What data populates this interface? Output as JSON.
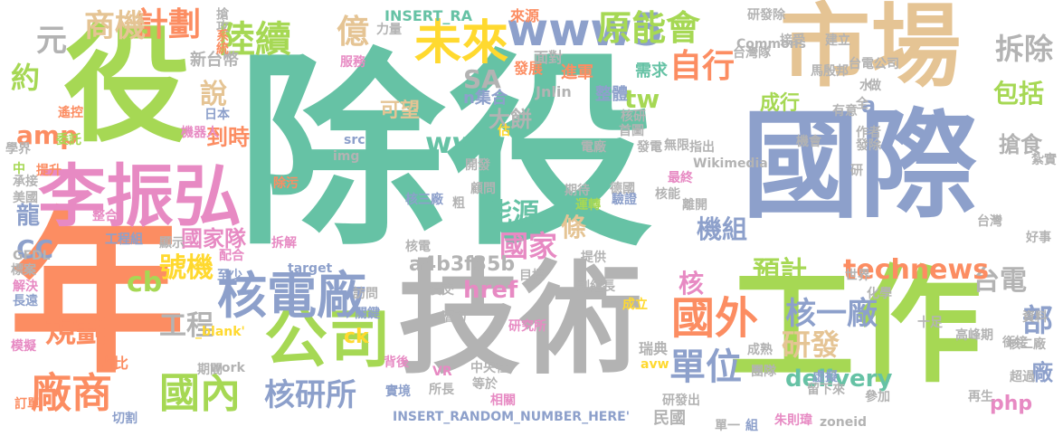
{
  "palette": {
    "green": "#66c2a5",
    "orange": "#fc8d62",
    "blue": "#8da0cb",
    "pink": "#e78ac3",
    "lime": "#a6d854",
    "yellow": "#ffd92f",
    "tan": "#e5c494",
    "gray": "#b3b3b3"
  },
  "words": [
    {
      "t": "除役",
      "c": "#66c2a5"
    },
    {
      "t": "年",
      "c": "#fc8d62"
    },
    {
      "t": "工作",
      "c": "#a6d854"
    },
    {
      "t": "技術",
      "c": "#b3b3b3"
    },
    {
      "t": "國際",
      "c": "#8da0cb"
    },
    {
      "t": "市場",
      "c": "#e5c494"
    },
    {
      "t": "役",
      "c": "#a6d854"
    },
    {
      "t": "李振弘",
      "c": "#e78ac3"
    },
    {
      "t": "公司",
      "c": "#a6d854"
    },
    {
      "t": "核電廠",
      "c": "#8da0cb"
    },
    {
      "t": "未來",
      "c": "#ffd92f"
    },
    {
      "t": "www5",
      "c": "#8da0cb"
    },
    {
      "t": "國外",
      "c": "#fc8d62"
    },
    {
      "t": "廠商",
      "c": "#fc8d62"
    },
    {
      "t": "國內",
      "c": "#a6d854"
    },
    {
      "t": "陸續",
      "c": "#a6d854"
    },
    {
      "t": "原能會",
      "c": "#a6d854"
    },
    {
      "t": "計劃",
      "c": "#fc8d62"
    },
    {
      "t": "億",
      "c": "#e5c494"
    },
    {
      "t": "商機",
      "c": "#e5c494"
    },
    {
      "t": "元",
      "c": "#b3b3b3"
    },
    {
      "t": "約",
      "c": "#a6d854"
    },
    {
      "t": "說",
      "c": "#e5c494"
    },
    {
      "t": "到時",
      "c": "#fc8d62"
    },
    {
      "t": "新台幣",
      "c": "#b3b3b3"
    },
    {
      "t": "日本",
      "c": "#8da0cb"
    },
    {
      "t": "SA",
      "c": "#b3b3b3"
    },
    {
      "t": "www",
      "c": "#66c2a5"
    },
    {
      "t": "tw",
      "c": "#a6d854"
    },
    {
      "t": "自行",
      "c": "#fc8d62"
    },
    {
      "t": "拆除",
      "c": "#b3b3b3"
    },
    {
      "t": "包括",
      "c": "#a6d854"
    },
    {
      "t": "台電",
      "c": "#b3b3b3"
    },
    {
      "t": "預計",
      "c": "#a6d854"
    },
    {
      "t": "technews",
      "c": "#fc8d62"
    },
    {
      "t": "研發",
      "c": "#e5c494"
    },
    {
      "t": "核一廠",
      "c": "#8da0cb"
    },
    {
      "t": "單位",
      "c": "#8da0cb"
    },
    {
      "t": "核研所",
      "c": "#8da0cb"
    },
    {
      "t": "delivery",
      "c": "#66c2a5"
    },
    {
      "t": "部",
      "c": "#8da0cb"
    },
    {
      "t": "廠",
      "c": "#8da0cb"
    },
    {
      "t": "php",
      "c": "#e78ac3"
    },
    {
      "t": "機組",
      "c": "#8da0cb"
    },
    {
      "t": "國家",
      "c": "#e78ac3"
    },
    {
      "t": "能源",
      "c": "#66c2a5"
    },
    {
      "t": "a4b3f35b",
      "c": "#b3b3b3"
    },
    {
      "t": "條",
      "c": "#e5c494"
    },
    {
      "t": "核",
      "c": "#e78ac3"
    },
    {
      "t": "href",
      "c": "#e78ac3"
    },
    {
      "t": "號機",
      "c": "#ffd92f"
    },
    {
      "t": "工程",
      "c": "#b3b3b3"
    },
    {
      "t": "規劃",
      "c": "#fc8d62"
    },
    {
      "t": "cb",
      "c": "#a6d854"
    },
    {
      "t": "CC",
      "c": "#8da0cb"
    },
    {
      "t": "龍",
      "c": "#8da0cb"
    },
    {
      "t": "amp",
      "c": "#fc8d62"
    },
    {
      "t": "國家隊",
      "c": "#e78ac3"
    },
    {
      "t": "ck",
      "c": "#ffd92f"
    },
    {
      "t": "大餅",
      "c": "#b3b3b3"
    },
    {
      "t": "可望",
      "c": "#e5c494"
    },
    {
      "t": "成行",
      "c": "#a6d854"
    },
    {
      "t": "搶食",
      "c": "#b3b3b3"
    },
    {
      "t": "a",
      "c": "#8da0cb"
    },
    {
      "t": "n集合",
      "c": "#8da0cb"
    },
    {
      "t": "Jnlin",
      "c": "#b3b3b3"
    },
    {
      "t": "整體",
      "c": "#8da0cb"
    },
    {
      "t": "需求",
      "c": "#66c2a5"
    },
    {
      "t": "進軍",
      "c": "#fc8d62"
    },
    {
      "t": "發展",
      "c": "#fc8d62"
    },
    {
      "t": "面對",
      "c": "#b3b3b3"
    },
    {
      "t": "INSERT_RA",
      "c": "#66c2a5"
    },
    {
      "t": "來源",
      "c": "#fc8d62"
    },
    {
      "t": "力量",
      "c": "#b3b3b3"
    },
    {
      "t": "搶攻",
      "c": "#b3b3b3"
    },
    {
      "t": "系統",
      "c": "#fc8d62"
    },
    {
      "t": "服務",
      "c": "#e78ac3"
    },
    {
      "t": "遙控",
      "c": "#fc8d62"
    },
    {
      "t": "委託",
      "c": "#a6d854"
    },
    {
      "t": "學界",
      "c": "#b3b3b3"
    },
    {
      "t": "機器人",
      "c": "#e78ac3"
    },
    {
      "t": "中",
      "c": "#a6d854"
    },
    {
      "t": "承接",
      "c": "#b3b3b3"
    },
    {
      "t": "提升",
      "c": "#fc8d62"
    },
    {
      "t": "美國",
      "c": "#b3b3b3"
    },
    {
      "t": "整合",
      "c": "#e78ac3"
    },
    {
      "t": "GFDL",
      "c": "#b3b3b3"
    },
    {
      "t": "工程組",
      "c": "#8da0cb"
    },
    {
      "t": "顯示",
      "c": "#b3b3b3"
    },
    {
      "t": "配合",
      "c": "#e78ac3"
    },
    {
      "t": "標案",
      "c": "#b3b3b3"
    },
    {
      "t": "至少",
      "c": "#8da0cb"
    },
    {
      "t": "解決",
      "c": "#e78ac3"
    },
    {
      "t": "長遠",
      "c": "#8da0cb"
    },
    {
      "t": "占比",
      "c": "#fc8d62"
    },
    {
      "t": "訂單",
      "c": "#fc8d62"
    },
    {
      "t": "期間",
      "c": "#b3b3b3"
    },
    {
      "t": "_blank'",
      "c": "#ffd92f"
    },
    {
      "t": "work",
      "c": "#b3b3b3"
    },
    {
      "t": "模擬",
      "c": "#e78ac3"
    },
    {
      "t": "切割",
      "c": "#8da0cb"
    },
    {
      "t": "target",
      "c": "#8da0cb"
    },
    {
      "t": "拆解",
      "c": "#e78ac3"
    },
    {
      "t": "除污",
      "c": "#fc8d62"
    },
    {
      "t": "img",
      "c": "#b3b3b3"
    },
    {
      "t": "src",
      "c": "#8da0cb"
    },
    {
      "t": "估",
      "c": "#ffd92f"
    },
    {
      "t": "開發",
      "c": "#b3b3b3"
    },
    {
      "t": "顧問",
      "c": "#b3b3b3"
    },
    {
      "t": "核三廠",
      "c": "#8da0cb"
    },
    {
      "t": "粗",
      "c": "#b3b3b3"
    },
    {
      "t": "核電",
      "c": "#b3b3b3"
    },
    {
      "t": "訪問",
      "c": "#b3b3b3"
    },
    {
      "t": "關鍵",
      "c": "#8da0cb"
    },
    {
      "t": "役交",
      "c": "#b3b3b3"
    },
    {
      "t": "潛力",
      "c": "#b3b3b3"
    },
    {
      "t": "背後",
      "c": "#e78ac3"
    },
    {
      "t": "研究所",
      "c": "#e78ac3"
    },
    {
      "t": "實境",
      "c": "#8da0cb"
    },
    {
      "t": "VR",
      "c": "#e78ac3"
    },
    {
      "t": "所長",
      "c": "#b3b3b3"
    },
    {
      "t": "中央社",
      "c": "#b3b3b3"
    },
    {
      "t": "等於",
      "c": "#b3b3b3"
    },
    {
      "t": "相關",
      "c": "#e78ac3"
    },
    {
      "t": "INSERT_RANDOM_NUMBER_HERE'",
      "c": "#8da0cb"
    },
    {
      "t": "民國",
      "c": "#b3b3b3"
    },
    {
      "t": "單一",
      "c": "#b3b3b3"
    },
    {
      "t": "組",
      "c": "#8da0cb"
    },
    {
      "t": "朱則瑋",
      "c": "#e78ac3"
    },
    {
      "t": "zoneid",
      "c": "#b3b3b3"
    },
    {
      "t": "瑞典",
      "c": "#b3b3b3"
    },
    {
      "t": "成立",
      "c": "#ffd92f"
    },
    {
      "t": "副組長",
      "c": "#b3b3b3"
    },
    {
      "t": "目標",
      "c": "#b3b3b3"
    },
    {
      "t": "提供",
      "c": "#b3b3b3"
    },
    {
      "t": "運轉",
      "c": "#a6d854"
    },
    {
      "t": "期待",
      "c": "#b3b3b3"
    },
    {
      "t": "德國",
      "c": "#b3b3b3"
    },
    {
      "t": "驗證",
      "c": "#8da0cb"
    },
    {
      "t": "核能",
      "c": "#b3b3b3"
    },
    {
      "t": "離開",
      "c": "#b3b3b3"
    },
    {
      "t": "最終",
      "c": "#e78ac3"
    },
    {
      "t": "電廠",
      "c": "#b3b3b3"
    },
    {
      "t": "發電",
      "c": "#b3b3b3"
    },
    {
      "t": "首圖",
      "c": "#b3b3b3"
    },
    {
      "t": "核研",
      "c": "#b3b3b3"
    },
    {
      "t": "無限",
      "c": "#b3b3b3"
    },
    {
      "t": "指出",
      "c": "#b3b3b3"
    },
    {
      "t": "Wikimedia",
      "c": "#b3b3b3"
    },
    {
      "t": "世界",
      "c": "#b3b3b3"
    },
    {
      "t": "化學",
      "c": "#b3b3b3"
    },
    {
      "t": "成熟",
      "c": "#b3b3b3"
    },
    {
      "t": "團隊",
      "c": "#b3b3b3"
    },
    {
      "t": "avw",
      "c": "#ffd92f"
    },
    {
      "t": "研發出",
      "c": "#b3b3b3"
    },
    {
      "t": "留下來",
      "c": "#b3b3b3"
    },
    {
      "t": "虛擬",
      "c": "#8da0cb"
    },
    {
      "t": "參加",
      "c": "#b3b3b3"
    },
    {
      "t": "再生",
      "c": "#b3b3b3"
    },
    {
      "t": "超過",
      "c": "#b3b3b3"
    },
    {
      "t": "核二廠",
      "c": "#b3b3b3"
    },
    {
      "t": "十足",
      "c": "#b3b3b3"
    },
    {
      "t": "高峰期",
      "c": "#b3b3b3"
    },
    {
      "t": "資料",
      "c": "#b3b3b3"
    },
    {
      "t": "銜接",
      "c": "#b3b3b3"
    },
    {
      "t": "好事",
      "c": "#b3b3b3"
    },
    {
      "t": "台灣",
      "c": "#b3b3b3"
    },
    {
      "t": "研",
      "c": "#b3b3b3"
    },
    {
      "t": "紮實",
      "c": "#b3b3b3"
    },
    {
      "t": "機會",
      "c": "#b3b3b3"
    },
    {
      "t": "發除",
      "c": "#b3b3b3"
    },
    {
      "t": "作者",
      "c": "#b3b3b3"
    },
    {
      "t": "全",
      "c": "#b3b3b3"
    },
    {
      "t": "有意",
      "c": "#b3b3b3"
    },
    {
      "t": "做",
      "c": "#b3b3b3"
    },
    {
      "t": "水",
      "c": "#b3b3b3"
    },
    {
      "t": "台電公司",
      "c": "#b3b3b3"
    },
    {
      "t": "馬殷邦",
      "c": "#b3b3b3"
    },
    {
      "t": "建立",
      "c": "#b3b3b3"
    },
    {
      "t": "接受",
      "c": "#b3b3b3"
    },
    {
      "t": "Commons",
      "c": "#b3b3b3"
    },
    {
      "t": "台灣隊",
      "c": "#b3b3b3"
    },
    {
      "t": "研發除",
      "c": "#b3b3b3"
    }
  ]
}
